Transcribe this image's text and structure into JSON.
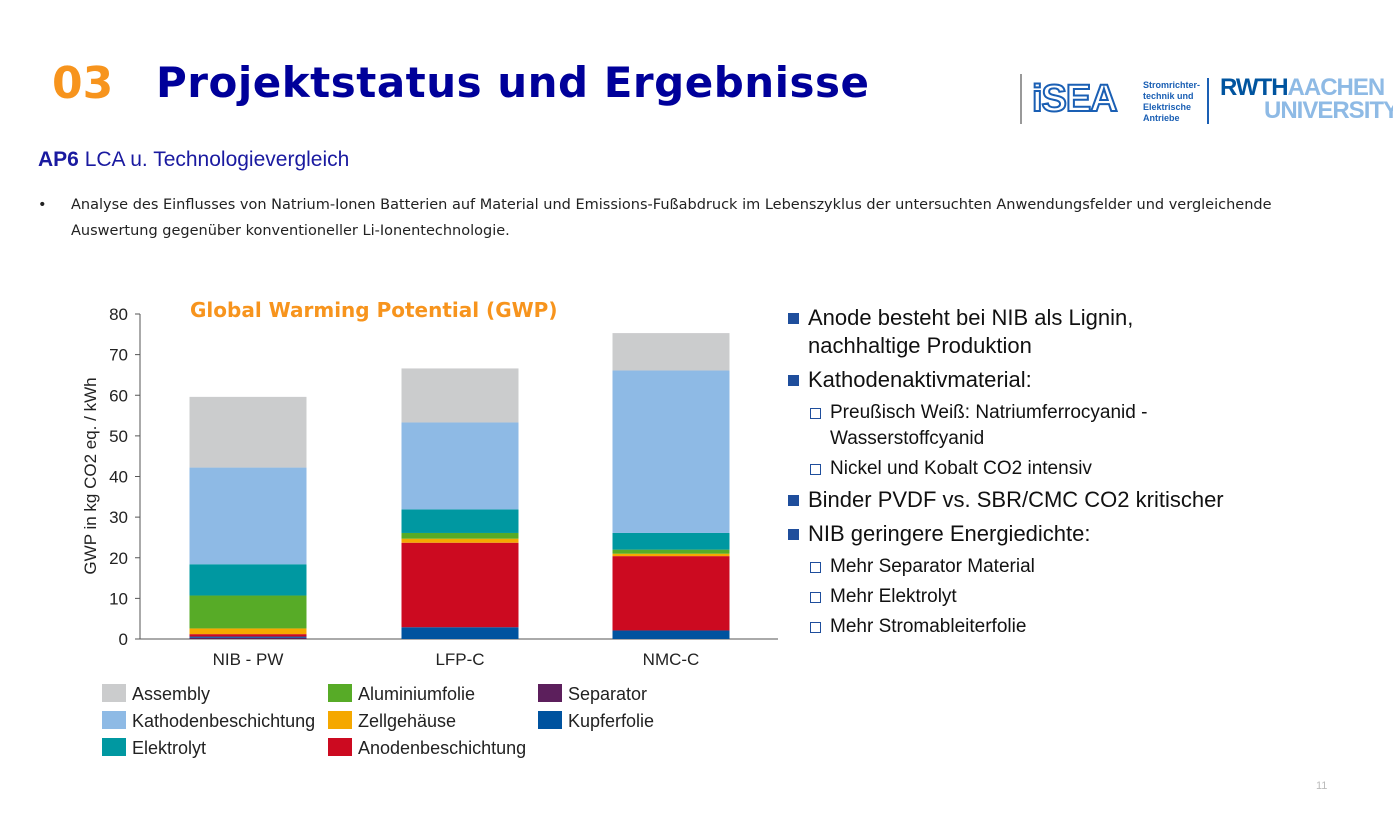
{
  "header": {
    "number": "03",
    "title": "Projektstatus und Ergebnisse"
  },
  "logos": {
    "isea": "iSEA",
    "isea_text": [
      "Stromrichter-",
      "technik und",
      "Elektrische",
      "Antriebe"
    ],
    "rwth": "RWTH",
    "aachen": "AACHEN",
    "university": "UNIVERSITY"
  },
  "subtitle": {
    "bold": "AP6",
    "text": " LCA u. Technologievergleich"
  },
  "bullet": {
    "symbol": "•",
    "text": "Analyse des Einflusses von Natrium-Ionen Batterien auf Material und Emissions-Fußabdruck im Lebenszyklus der untersuchten Anwendungsfelder und vergleichende Auswertung gegenüber konventioneller Li-Ionentechnologie."
  },
  "chart_data": {
    "type": "bar",
    "stacked": true,
    "title": "Global Warming Potential (GWP)",
    "ylabel": "GWP in kg CO2 eq. / kWh",
    "xlabel": "",
    "ylim": [
      0,
      80
    ],
    "yticks": [
      0,
      10,
      20,
      30,
      40,
      50,
      60,
      70,
      80
    ],
    "categories": [
      "NIB - PW",
      "LFP-C",
      "NMC-C"
    ],
    "series": [
      {
        "name": "Separator",
        "color": "#5c1f5c",
        "values": [
          0.3,
          0,
          0
        ]
      },
      {
        "name": "Kupferfolie",
        "color": "#00539f",
        "values": [
          0.3,
          2.9,
          2.1
        ]
      },
      {
        "name": "Anodenbeschichtung",
        "color": "#cc0a20",
        "values": [
          0.6,
          20.8,
          18.3
        ]
      },
      {
        "name": "Zellgehäuse",
        "color": "#f5a800",
        "values": [
          1.4,
          1.0,
          0.6
        ]
      },
      {
        "name": "Aluminiumfolie",
        "color": "#57ab27",
        "values": [
          8.1,
          1.4,
          1.0
        ]
      },
      {
        "name": "Elektrolyt",
        "color": "#0098a1",
        "values": [
          7.7,
          5.8,
          4.1
        ]
      },
      {
        "name": "Kathodenbeschichtung",
        "color": "#8ebae5",
        "values": [
          23.8,
          21.4,
          40.0
        ]
      },
      {
        "name": "Assembly",
        "color": "#cbcccd",
        "values": [
          17.4,
          13.3,
          9.2
        ]
      }
    ],
    "legend_order": [
      "Assembly",
      "Kathodenbeschichtung",
      "Elektrolyt",
      "Aluminiumfolie",
      "Zellgehäuse",
      "Anodenbeschichtung",
      "Separator",
      "Kupferfolie"
    ],
    "legend": "bottom"
  },
  "right": [
    {
      "level": 1,
      "text": "Anode besteht bei NIB als Lignin, nachhaltige Produktion"
    },
    {
      "level": 1,
      "text": "Kathodenaktivmaterial:"
    },
    {
      "level": 2,
      "text": "Preußisch Weiß: Natriumferrocyanid - Wasserstoffcyanid"
    },
    {
      "level": 2,
      "text": "Nickel und Kobalt CO2 intensiv"
    },
    {
      "level": 1,
      "text": "Binder PVDF vs. SBR/CMC CO2 kritischer"
    },
    {
      "level": 1,
      "text": "NIB geringere Energiedichte:"
    },
    {
      "level": 2,
      "text": "Mehr Separator Material"
    },
    {
      "level": 2,
      "text": "Mehr Elektrolyt"
    },
    {
      "level": 2,
      "text": "Mehr Stromableiterfolie"
    }
  ],
  "page_number": "11"
}
